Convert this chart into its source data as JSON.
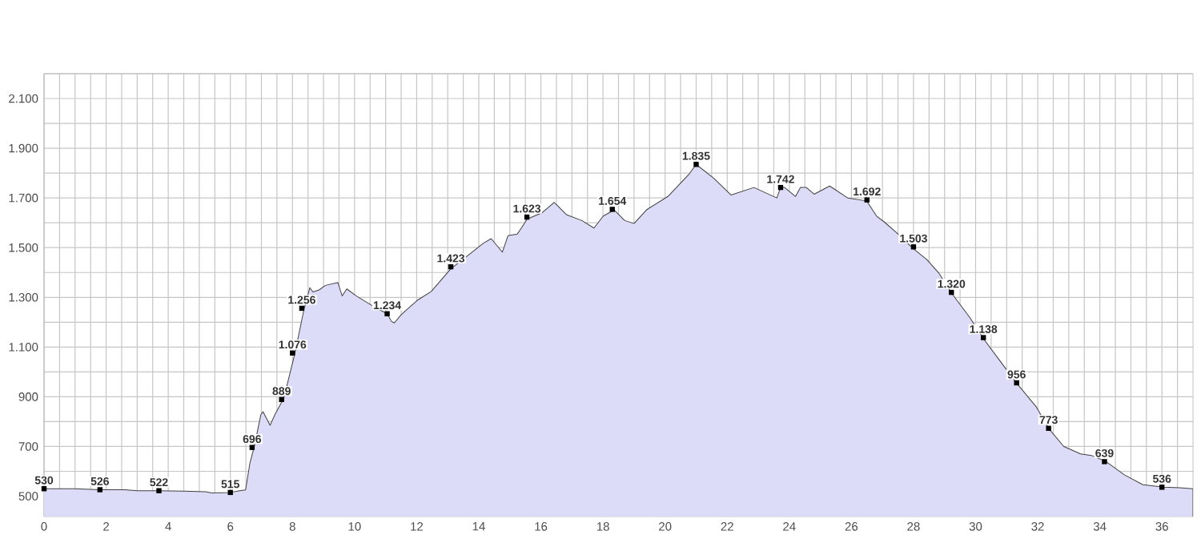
{
  "chart_data": {
    "type": "area",
    "x": [
      0,
      0.5,
      1.0,
      1.8,
      2.6,
      3.0,
      3.7,
      4.5,
      5.2,
      5.4,
      6.0,
      6.3,
      6.49,
      6.63,
      6.77,
      6.98,
      7.05,
      7.28,
      7.43,
      7.72,
      8.07,
      8.37,
      8.56,
      8.66,
      8.86,
      9.06,
      9.46,
      9.6,
      9.75,
      10.05,
      10.6,
      11.05,
      11.19,
      11.28,
      11.48,
      11.63,
      12.02,
      12.47,
      13.1,
      13.85,
      14.15,
      14.4,
      14.76,
      14.94,
      15.24,
      15.34,
      15.56,
      16.03,
      16.43,
      16.82,
      17.32,
      17.71,
      18.01,
      18.36,
      18.7,
      19.0,
      19.4,
      20.09,
      20.78,
      21.0,
      21.57,
      22.12,
      22.86,
      23.6,
      23.72,
      23.85,
      24.2,
      24.36,
      24.55,
      24.8,
      25.3,
      25.88,
      26.49,
      26.81,
      27.06,
      27.45,
      27.99,
      28.43,
      28.82,
      29.22,
      29.8,
      30.24,
      30.78,
      31.32,
      31.96,
      32.35,
      32.84,
      33.38,
      33.73,
      34.2,
      34.8,
      35.39,
      36.06,
      36.57,
      37.0
    ],
    "series": [
      {
        "color": "#dcdcf8",
        "values": [
          530,
          530,
          530,
          526,
          526,
          522,
          522,
          520,
          518,
          513,
          515,
          522,
          525,
          633,
          700,
          827,
          840,
          785,
          827,
          894,
          1070,
          1251,
          1339,
          1322,
          1330,
          1348,
          1360,
          1306,
          1334,
          1306,
          1264,
          1234,
          1203,
          1197,
          1227,
          1245,
          1288,
          1324,
          1415,
          1488,
          1518,
          1536,
          1482,
          1548,
          1555,
          1573,
          1615,
          1640,
          1682,
          1633,
          1609,
          1579,
          1627,
          1652,
          1609,
          1597,
          1652,
          1706,
          1797,
          1835,
          1779,
          1712,
          1742,
          1700,
          1742,
          1742,
          1706,
          1742,
          1742,
          1715,
          1748,
          1700,
          1688,
          1627,
          1603,
          1561,
          1496,
          1452,
          1397,
          1318,
          1221,
          1136,
          1045,
          955,
          858,
          773,
          700,
          670,
          664,
          639,
          585,
          546,
          536,
          534,
          530
        ]
      }
    ],
    "xlim": [
      0,
      37
    ],
    "ylim": [
      418,
      2200
    ],
    "xticks": [
      0,
      {
        "value": 0.5,
        "label": null
      },
      {
        "value": 1,
        "label": null
      },
      {
        "value": 1.5,
        "label": null
      },
      2,
      {
        "value": 2.5,
        "label": null
      },
      {
        "value": 3,
        "label": null
      },
      {
        "value": 3.5,
        "label": null
      },
      4,
      {
        "value": 4.5,
        "label": null
      },
      {
        "value": 5,
        "label": null
      },
      {
        "value": 5.5,
        "label": null
      },
      6,
      {
        "value": 6.5,
        "label": null
      },
      {
        "value": 7,
        "label": null
      },
      {
        "value": 7.5,
        "label": null
      },
      8,
      {
        "value": 8.5,
        "label": null
      },
      {
        "value": 9,
        "label": null
      },
      {
        "value": 9.5,
        "label": null
      },
      10,
      {
        "value": 10.5,
        "label": null
      },
      {
        "value": 11,
        "label": null
      },
      {
        "value": 11.5,
        "label": null
      },
      12,
      {
        "value": 12.5,
        "label": null
      },
      {
        "value": 13,
        "label": null
      },
      {
        "value": 13.5,
        "label": null
      },
      14,
      {
        "value": 14.5,
        "label": null
      },
      {
        "value": 15,
        "label": null
      },
      {
        "value": 15.5,
        "label": null
      },
      16,
      {
        "value": 16.5,
        "label": null
      },
      {
        "value": 17,
        "label": null
      },
      {
        "value": 17.5,
        "label": null
      },
      18,
      {
        "value": 18.5,
        "label": null
      },
      {
        "value": 19,
        "label": null
      },
      {
        "value": 19.5,
        "label": null
      },
      20,
      {
        "value": 20.5,
        "label": null
      },
      {
        "value": 21,
        "label": null
      },
      {
        "value": 21.5,
        "label": null
      },
      22,
      {
        "value": 22.5,
        "label": null
      },
      {
        "value": 23,
        "label": null
      },
      {
        "value": 23.5,
        "label": null
      },
      24,
      {
        "value": 24.5,
        "label": null
      },
      {
        "value": 25,
        "label": null
      },
      {
        "value": 25.5,
        "label": null
      },
      26,
      {
        "value": 26.5,
        "label": null
      },
      {
        "value": 27,
        "label": null
      },
      {
        "value": 27.5,
        "label": null
      },
      28,
      {
        "value": 28.5,
        "label": null
      },
      {
        "value": 29,
        "label": null
      },
      {
        "value": 29.5,
        "label": null
      },
      30,
      {
        "value": 30.5,
        "label": null
      },
      {
        "value": 31,
        "label": null
      },
      {
        "value": 31.5,
        "label": null
      },
      32,
      {
        "value": 32.5,
        "label": null
      },
      {
        "value": 33,
        "label": null
      },
      {
        "value": 33.5,
        "label": null
      },
      34,
      {
        "value": 34.5,
        "label": null
      },
      {
        "value": 35,
        "label": null
      },
      {
        "value": 35.5,
        "label": null
      },
      36,
      {
        "value": 36.5,
        "label": null
      }
    ],
    "yticks": [
      {
        "value": 500,
        "label": "500"
      },
      {
        "value": 600,
        "label": null
      },
      {
        "value": 700,
        "label": "700"
      },
      {
        "value": 800,
        "label": null
      },
      {
        "value": 900,
        "label": "900"
      },
      {
        "value": 1000,
        "label": null
      },
      {
        "value": 1100,
        "label": "1.100"
      },
      {
        "value": 1200,
        "label": null
      },
      {
        "value": 1300,
        "label": "1.300"
      },
      {
        "value": 1400,
        "label": null
      },
      {
        "value": 1500,
        "label": "1.500"
      },
      {
        "value": 1600,
        "label": null
      },
      {
        "value": 1700,
        "label": "1.700"
      },
      {
        "value": 1800,
        "label": null
      },
      {
        "value": 1900,
        "label": "1.900"
      },
      {
        "value": 2000,
        "label": null
      },
      {
        "value": 2100,
        "label": "2.100"
      },
      {
        "value": 2200,
        "label": null
      }
    ],
    "grid": true,
    "annotations": [
      {
        "text": "530",
        "x": 0,
        "y": 530
      },
      {
        "text": "526",
        "x": 1.8,
        "y": 526
      },
      {
        "text": "522",
        "x": 3.7,
        "y": 522
      },
      {
        "text": "515",
        "x": 6.0,
        "y": 515
      },
      {
        "text": "696",
        "x": 6.7,
        "y": 696
      },
      {
        "text": "889",
        "x": 7.65,
        "y": 889
      },
      {
        "text": "1.076",
        "x": 8.0,
        "y": 1076
      },
      {
        "text": "1.256",
        "x": 8.3,
        "y": 1256
      },
      {
        "text": "1.234",
        "x": 11.05,
        "y": 1234
      },
      {
        "text": "1.423",
        "x": 13.1,
        "y": 1423
      },
      {
        "text": "1.623",
        "x": 15.55,
        "y": 1623
      },
      {
        "text": "1.654",
        "x": 18.3,
        "y": 1654
      },
      {
        "text": "1.835",
        "x": 21.0,
        "y": 1835
      },
      {
        "text": "1.742",
        "x": 23.72,
        "y": 1742
      },
      {
        "text": "1.692",
        "x": 26.5,
        "y": 1692
      },
      {
        "text": "1.503",
        "x": 28.0,
        "y": 1503
      },
      {
        "text": "1.320",
        "x": 29.22,
        "y": 1320
      },
      {
        "text": "1.138",
        "x": 30.25,
        "y": 1138
      },
      {
        "text": "956",
        "x": 31.32,
        "y": 956
      },
      {
        "text": "773",
        "x": 32.35,
        "y": 773
      },
      {
        "text": "639",
        "x": 34.15,
        "y": 639
      },
      {
        "text": "536",
        "x": 36.0,
        "y": 536
      }
    ]
  }
}
